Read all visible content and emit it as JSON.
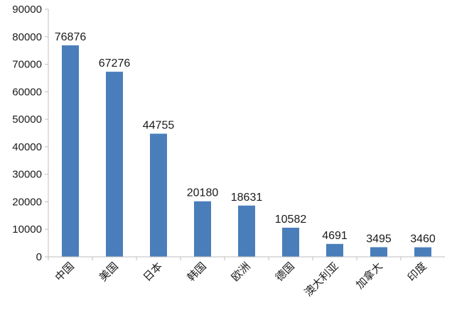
{
  "chart_data": {
    "type": "bar",
    "categories": [
      "中国",
      "美国",
      "日本",
      "韩国",
      "欧洲",
      "德国",
      "澳大利亚",
      "加拿大",
      "印度"
    ],
    "values": [
      76876,
      67276,
      44755,
      20180,
      18631,
      10582,
      4691,
      3495,
      3460
    ],
    "data_labels": [
      "76876",
      "67276",
      "44755",
      "20180",
      "18631",
      "10582",
      "4691",
      "3495",
      "3460"
    ],
    "y_ticks": [
      "0",
      "10000",
      "20000",
      "30000",
      "40000",
      "50000",
      "60000",
      "70000",
      "80000",
      "90000"
    ],
    "ylim": [
      0,
      90000
    ],
    "grid": false,
    "legend": "none",
    "bar_color": "#4a7ebb"
  }
}
